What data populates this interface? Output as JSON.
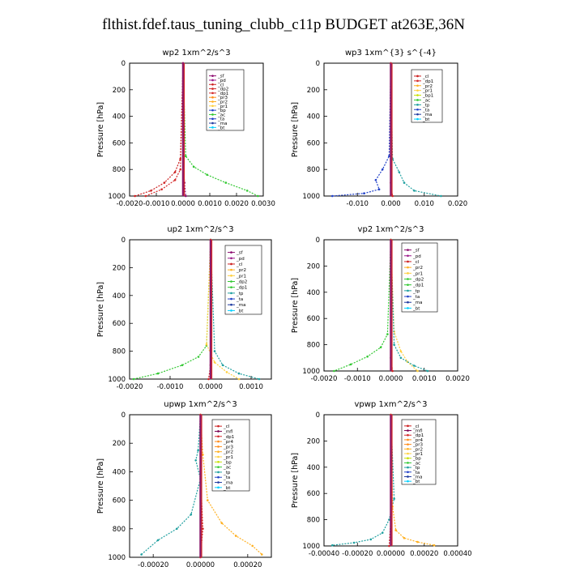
{
  "title": "flthist.fdef.taus_tuning_clubb_c11p  BUDGET at263E,36N",
  "colors": {
    "sf": "#8b0a6e",
    "pd": "#9b1a8a",
    "cl": "#cc2020",
    "dp": "#d42a2a",
    "pr": "#ff8c1a",
    "pr2": "#ffb020",
    "pr1": "#ffd040",
    "bp": "#c8e000",
    "ac": "#32c832",
    "tp": "#20a0a0",
    "ta": "#2040c8",
    "ma": "#1e3aa0",
    "bt": "#00d0ff",
    "mfl": "#7a0050"
  },
  "chart_data": [
    {
      "type": "line",
      "id": "wp2",
      "title": "wp2   1xm^2/s^3",
      "ylabel": "Pressure [hPa]",
      "xlim": [
        -0.002,
        0.003
      ],
      "ylim": [
        1000,
        0
      ],
      "xticks": [
        "-0.0020",
        "-0.0010",
        "0.0000",
        "0.0010",
        "0.0020",
        "0.0030"
      ],
      "xtick_values": [
        -0.002,
        -0.001,
        0,
        0.001,
        0.002,
        0.003
      ],
      "yticks": [
        "0",
        "200",
        "400",
        "600",
        "800",
        "1000"
      ],
      "legend": [
        "_sf",
        "_pd",
        "_cl",
        "_dp2",
        "_dp1",
        "_pr3",
        "_pr2",
        "_pr1",
        "_bp",
        "_ac",
        "_ta",
        "_ma",
        "_bt"
      ],
      "legend_colors": [
        "sf",
        "pd",
        "cl",
        "dp",
        "dp",
        "pr",
        "pr2",
        "pr1",
        "ta",
        "ac",
        "ta",
        "ma",
        "bt"
      ],
      "series": [
        {
          "color": "ac",
          "x": [
            0,
            0.0001,
            0.0004,
            0.0009,
            0.0016,
            0.0024,
            0.0028
          ],
          "y": [
            0,
            700,
            780,
            840,
            900,
            960,
            1000
          ]
        },
        {
          "color": "cl",
          "x": [
            0,
            -0.0001,
            -0.0003,
            -0.0007,
            -0.0012,
            -0.0018
          ],
          "y": [
            0,
            720,
            820,
            900,
            960,
            1000
          ]
        },
        {
          "color": "dp",
          "x": [
            0,
            -0.0001,
            -0.0003,
            -0.0008,
            -0.0014
          ],
          "y": [
            0,
            800,
            880,
            950,
            1000
          ]
        },
        {
          "color": "sf",
          "x": [
            0,
            0,
            5e-05,
            0.0001
          ],
          "y": [
            0,
            700,
            900,
            1000
          ]
        }
      ]
    },
    {
      "type": "line",
      "id": "wp3",
      "title": "wp3   1xm^{3} s^{-4}",
      "ylabel": "Pressure [hPa]",
      "xlim": [
        -0.02,
        0.02
      ],
      "ylim": [
        1000,
        0
      ],
      "xticks": [
        "-0.010",
        "0.000",
        "0.010",
        "0.020"
      ],
      "xtick_values": [
        -0.01,
        0,
        0.01,
        0.02
      ],
      "yticks": [
        "0",
        "200",
        "400",
        "600",
        "800",
        "1000"
      ],
      "legend": [
        "_cl",
        "_dp1",
        "_pr2",
        "_pr1",
        "_bp1",
        "_ac",
        "_tp",
        "_ta",
        "_ma",
        "_bt"
      ],
      "legend_colors": [
        "cl",
        "dp",
        "pr2",
        "pr1",
        "bp",
        "ac",
        "tp",
        "ta",
        "ma",
        "bt"
      ],
      "series": [
        {
          "color": "ta",
          "x": [
            0,
            -0.0005,
            -0.0025,
            -0.0045,
            -0.0035,
            -0.008,
            -0.0175
          ],
          "y": [
            0,
            700,
            800,
            880,
            950,
            980,
            1000
          ]
        },
        {
          "color": "tp",
          "x": [
            0,
            0.0005,
            0.0025,
            0.004,
            0.007,
            0.015
          ],
          "y": [
            0,
            720,
            820,
            900,
            960,
            1000
          ]
        },
        {
          "color": "cl",
          "x": [
            0,
            0,
            0.0005
          ],
          "y": [
            0,
            900,
            1000
          ]
        }
      ]
    },
    {
      "type": "line",
      "id": "up2",
      "title": "up2   1xm^2/s^3",
      "ylabel": "Pressure [hPa]",
      "xlim": [
        -0.002,
        0.0015
      ],
      "ylim": [
        1000,
        0
      ],
      "xticks": [
        "-0.0020",
        "-0.0010",
        "0.0000",
        "0.0010"
      ],
      "xtick_values": [
        -0.002,
        -0.001,
        0,
        0.001
      ],
      "yticks": [
        "0",
        "200",
        "400",
        "600",
        "800",
        "1000"
      ],
      "legend": [
        "_sf",
        "_pd",
        "_cl",
        "_pr2",
        "_pr1",
        "_dp2",
        "_dp1",
        "_tp",
        "_ta",
        "_ma",
        "_bt"
      ],
      "legend_colors": [
        "sf",
        "pd",
        "cl",
        "pr2",
        "pr1",
        "ac",
        "ac",
        "tp",
        "ta",
        "ma",
        "bt"
      ],
      "series": [
        {
          "color": "ac",
          "x": [
            0,
            -0.0001,
            -0.0003,
            -0.0007,
            -0.0013,
            -0.0019
          ],
          "y": [
            0,
            760,
            840,
            900,
            960,
            1000
          ]
        },
        {
          "color": "pr1",
          "x": [
            0,
            -0.0001,
            0.0001,
            0.0004,
            0.0007
          ],
          "y": [
            0,
            750,
            880,
            950,
            1000
          ]
        },
        {
          "color": "tp",
          "x": [
            0,
            0.0001,
            0.0003,
            0.0007,
            0.0012
          ],
          "y": [
            0,
            800,
            900,
            960,
            1000
          ]
        },
        {
          "color": "cl",
          "x": [
            0,
            0,
            -5e-05
          ],
          "y": [
            0,
            900,
            1000
          ]
        }
      ]
    },
    {
      "type": "line",
      "id": "vp2",
      "title": "vp2   1xm^2/s^3",
      "ylabel": "Pressure [hPa]",
      "xlim": [
        -0.002,
        0.002
      ],
      "ylim": [
        1000,
        0
      ],
      "xticks": [
        "-0.0020",
        "-0.0010",
        "0.0000",
        "0.0010",
        "0.0020"
      ],
      "xtick_values": [
        -0.002,
        -0.001,
        0,
        0.001,
        0.002
      ],
      "yticks": [
        "0",
        "200",
        "400",
        "600",
        "800",
        "1000"
      ],
      "legend": [
        "_sf",
        "_pd",
        "_cl",
        "_pr2",
        "_pr1",
        "_dp2",
        "_dp1",
        "_tp",
        "_ta",
        "_ma",
        "_bt"
      ],
      "legend_colors": [
        "sf",
        "pd",
        "cl",
        "pr2",
        "pr1",
        "ac",
        "ac",
        "tp",
        "ta",
        "ma",
        "bt"
      ],
      "series": [
        {
          "color": "ac",
          "x": [
            0,
            -0.0001,
            -0.0003,
            -0.0007,
            -0.0012,
            -0.0017
          ],
          "y": [
            0,
            720,
            820,
            890,
            950,
            1000
          ]
        },
        {
          "color": "pr1",
          "x": [
            0,
            0.0001,
            0.0003,
            0.0005,
            0.0008
          ],
          "y": [
            0,
            700,
            850,
            930,
            1000
          ]
        },
        {
          "color": "tp",
          "x": [
            0,
            0.0001,
            0.0003,
            0.0007,
            0.0011
          ],
          "y": [
            0,
            800,
            900,
            960,
            1000
          ]
        },
        {
          "color": "cl",
          "x": [
            0,
            0,
            5e-05
          ],
          "y": [
            0,
            900,
            1000
          ]
        }
      ]
    },
    {
      "type": "line",
      "id": "upwp",
      "title": "upwp   1xm^2/s^3",
      "ylabel": "Pressure [hPa]",
      "xlim": [
        -0.0003,
        0.0003
      ],
      "ylim": [
        1000,
        0
      ],
      "xticks": [
        "-0.00020",
        "0.00000",
        "0.00020"
      ],
      "xtick_values": [
        -0.0002,
        0,
        0.0002
      ],
      "yticks": [
        "0",
        "200",
        "400",
        "600",
        "800",
        "1000"
      ],
      "legend": [
        "_cl",
        "_mfl",
        "_dp1",
        "_pr4",
        "_pr3",
        "_pr2",
        "_pr1",
        "_bp",
        "_ac",
        "_tp",
        "_ta",
        "_ma",
        "_bt"
      ],
      "legend_colors": [
        "cl",
        "mfl",
        "dp",
        "pr",
        "pr",
        "pr2",
        "pr1",
        "bp",
        "ac",
        "tp",
        "ta",
        "ma",
        "bt"
      ],
      "series": [
        {
          "color": "tp",
          "x": [
            0,
            -1e-05,
            -2e-05,
            0.0,
            -4e-05,
            -0.0001,
            -0.00018,
            -0.00025
          ],
          "y": [
            0,
            250,
            320,
            450,
            700,
            800,
            880,
            980
          ]
        },
        {
          "color": "pr2",
          "x": [
            0,
            1e-05,
            3e-05,
            9e-05,
            0.00015,
            0.00022,
            0.00026
          ],
          "y": [
            0,
            280,
            600,
            760,
            850,
            920,
            980
          ]
        },
        {
          "color": "cl",
          "x": [
            0,
            0,
            1e-05,
            0
          ],
          "y": [
            0,
            400,
            800,
            1000
          ]
        }
      ]
    },
    {
      "type": "line",
      "id": "vpwp",
      "title": "vpwp   1xm^2/s^3",
      "ylabel": "Pressure [hPa]",
      "xlim": [
        -0.0004,
        0.0004
      ],
      "ylim": [
        1000,
        0
      ],
      "xticks": [
        "-0.00040",
        "-0.00020",
        "0.00000",
        "0.00020",
        "0.00040"
      ],
      "xtick_values": [
        -0.0004,
        -0.0002,
        0,
        0.0002,
        0.0004
      ],
      "yticks": [
        "0",
        "200",
        "400",
        "600",
        "800",
        "1000"
      ],
      "legend": [
        "_cl",
        "_mfl",
        "_dp1",
        "_pr4",
        "_pr3",
        "_pr2",
        "_pr1",
        "_bp",
        "_ac",
        "_tp",
        "_ta",
        "_ma",
        "_bt"
      ],
      "legend_colors": [
        "cl",
        "mfl",
        "dp",
        "pr",
        "pr",
        "pr2",
        "pr1",
        "bp",
        "ac",
        "tp",
        "ta",
        "ma",
        "bt"
      ],
      "series": [
        {
          "color": "tp",
          "x": [
            0,
            2e-05,
            -1e-05,
            -5e-05,
            -0.00012,
            -0.00022,
            -0.00035
          ],
          "y": [
            0,
            640,
            800,
            900,
            950,
            975,
            995
          ]
        },
        {
          "color": "pr2",
          "x": [
            0,
            1e-05,
            3e-05,
            8e-05,
            0.00016,
            0.00026
          ],
          "y": [
            0,
            700,
            880,
            940,
            970,
            995
          ]
        },
        {
          "color": "cl",
          "x": [
            0,
            0,
            -1e-05
          ],
          "y": [
            0,
            800,
            1000
          ]
        }
      ]
    }
  ]
}
